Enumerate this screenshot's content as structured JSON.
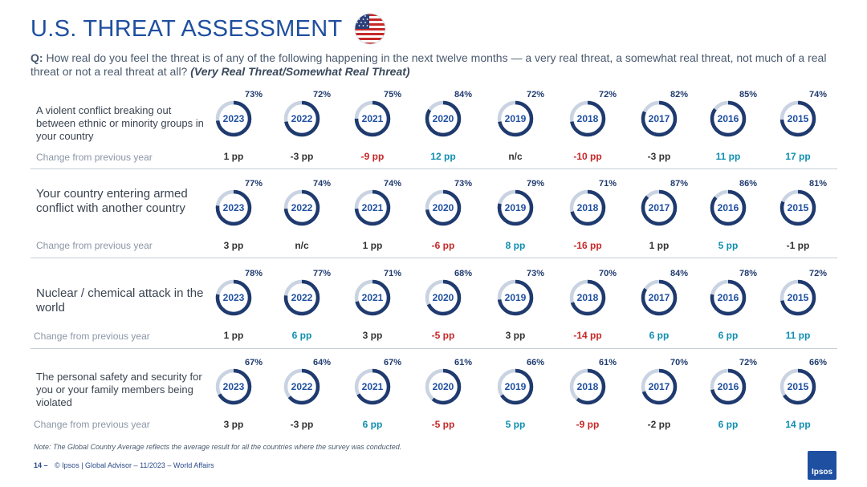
{
  "header": {
    "title": "U.S. THREAT ASSESSMENT",
    "question_prefix": "Q:",
    "question_text": "How real do you feel the threat is of any of the following happening in the next twelve months — a very real threat, a somewhat real threat, not much of a real threat or not a real threat at all?",
    "question_emphasis": "(Very Real Threat/Somewhat Real Threat)"
  },
  "colors": {
    "ring": "#1f3a6e",
    "ring_track": "#c9d3e2",
    "increase": "#0f8fb0",
    "decrease": "#c62828",
    "neutral": "#333333"
  },
  "chart_data": {
    "type": "table",
    "years": [
      "2023",
      "2022",
      "2021",
      "2020",
      "2019",
      "2018",
      "2017",
      "2016",
      "2015"
    ],
    "change_label": "Change from previous year",
    "rows": [
      {
        "label": "A violent conflict breaking out between ethnic or minority groups in your country",
        "values": [
          73,
          72,
          75,
          84,
          72,
          72,
          82,
          85,
          74
        ],
        "value_labels": [
          "73%",
          "72%",
          "75%",
          "84%",
          "72%",
          "72%",
          "82%",
          "85%",
          "74%"
        ],
        "changes": [
          "1 pp",
          "-3 pp",
          "-9 pp",
          "12 pp",
          "n/c",
          "-10 pp",
          "-3 pp",
          "11 pp",
          "17 pp"
        ],
        "change_dir": [
          "neutral",
          "neutral",
          "down",
          "up",
          "neutral",
          "down",
          "neutral",
          "up",
          "up"
        ]
      },
      {
        "label": "Your country entering armed conflict with another country",
        "values": [
          77,
          74,
          74,
          73,
          79,
          71,
          87,
          86,
          81
        ],
        "value_labels": [
          "77%",
          "74%",
          "74%",
          "73%",
          "79%",
          "71%",
          "87%",
          "86%",
          "81%"
        ],
        "changes": [
          "3 pp",
          "n/c",
          "1 pp",
          "-6 pp",
          "8 pp",
          "-16 pp",
          "1 pp",
          "5 pp",
          "-1 pp"
        ],
        "change_dir": [
          "neutral",
          "neutral",
          "neutral",
          "down",
          "up",
          "down",
          "neutral",
          "up",
          "neutral"
        ]
      },
      {
        "label": "Nuclear / chemical attack in the world",
        "values": [
          78,
          77,
          71,
          68,
          73,
          70,
          84,
          78,
          72
        ],
        "value_labels": [
          "78%",
          "77%",
          "71%",
          "68%",
          "73%",
          "70%",
          "84%",
          "78%",
          "72%"
        ],
        "changes": [
          "1 pp",
          "6 pp",
          "3 pp",
          "-5 pp",
          "3 pp",
          "-14 pp",
          "6 pp",
          "6 pp",
          "11 pp"
        ],
        "change_dir": [
          "neutral",
          "up",
          "neutral",
          "down",
          "neutral",
          "down",
          "up",
          "up",
          "up"
        ]
      },
      {
        "label": "The personal safety and security for you or your family members being violated",
        "values": [
          67,
          64,
          67,
          61,
          66,
          61,
          70,
          72,
          66
        ],
        "value_labels": [
          "67%",
          "64%",
          "67%",
          "61%",
          "66%",
          "61%",
          "70%",
          "72%",
          "66%"
        ],
        "changes": [
          "3 pp",
          "-3 pp",
          "6 pp",
          "-5 pp",
          "5 pp",
          "-9 pp",
          "-2 pp",
          "6 pp",
          "14 pp"
        ],
        "change_dir": [
          "neutral",
          "neutral",
          "up",
          "down",
          "up",
          "down",
          "neutral",
          "up",
          "up"
        ]
      }
    ]
  },
  "footer": {
    "note": "Note: The Global Country Average reflects the average result for all the countries where the survey was conducted.",
    "page_number": "14 –",
    "copyright": "© Ipsos | Global Advisor – 11/2023 – World Affairs",
    "logo_text": "Ipsos"
  }
}
